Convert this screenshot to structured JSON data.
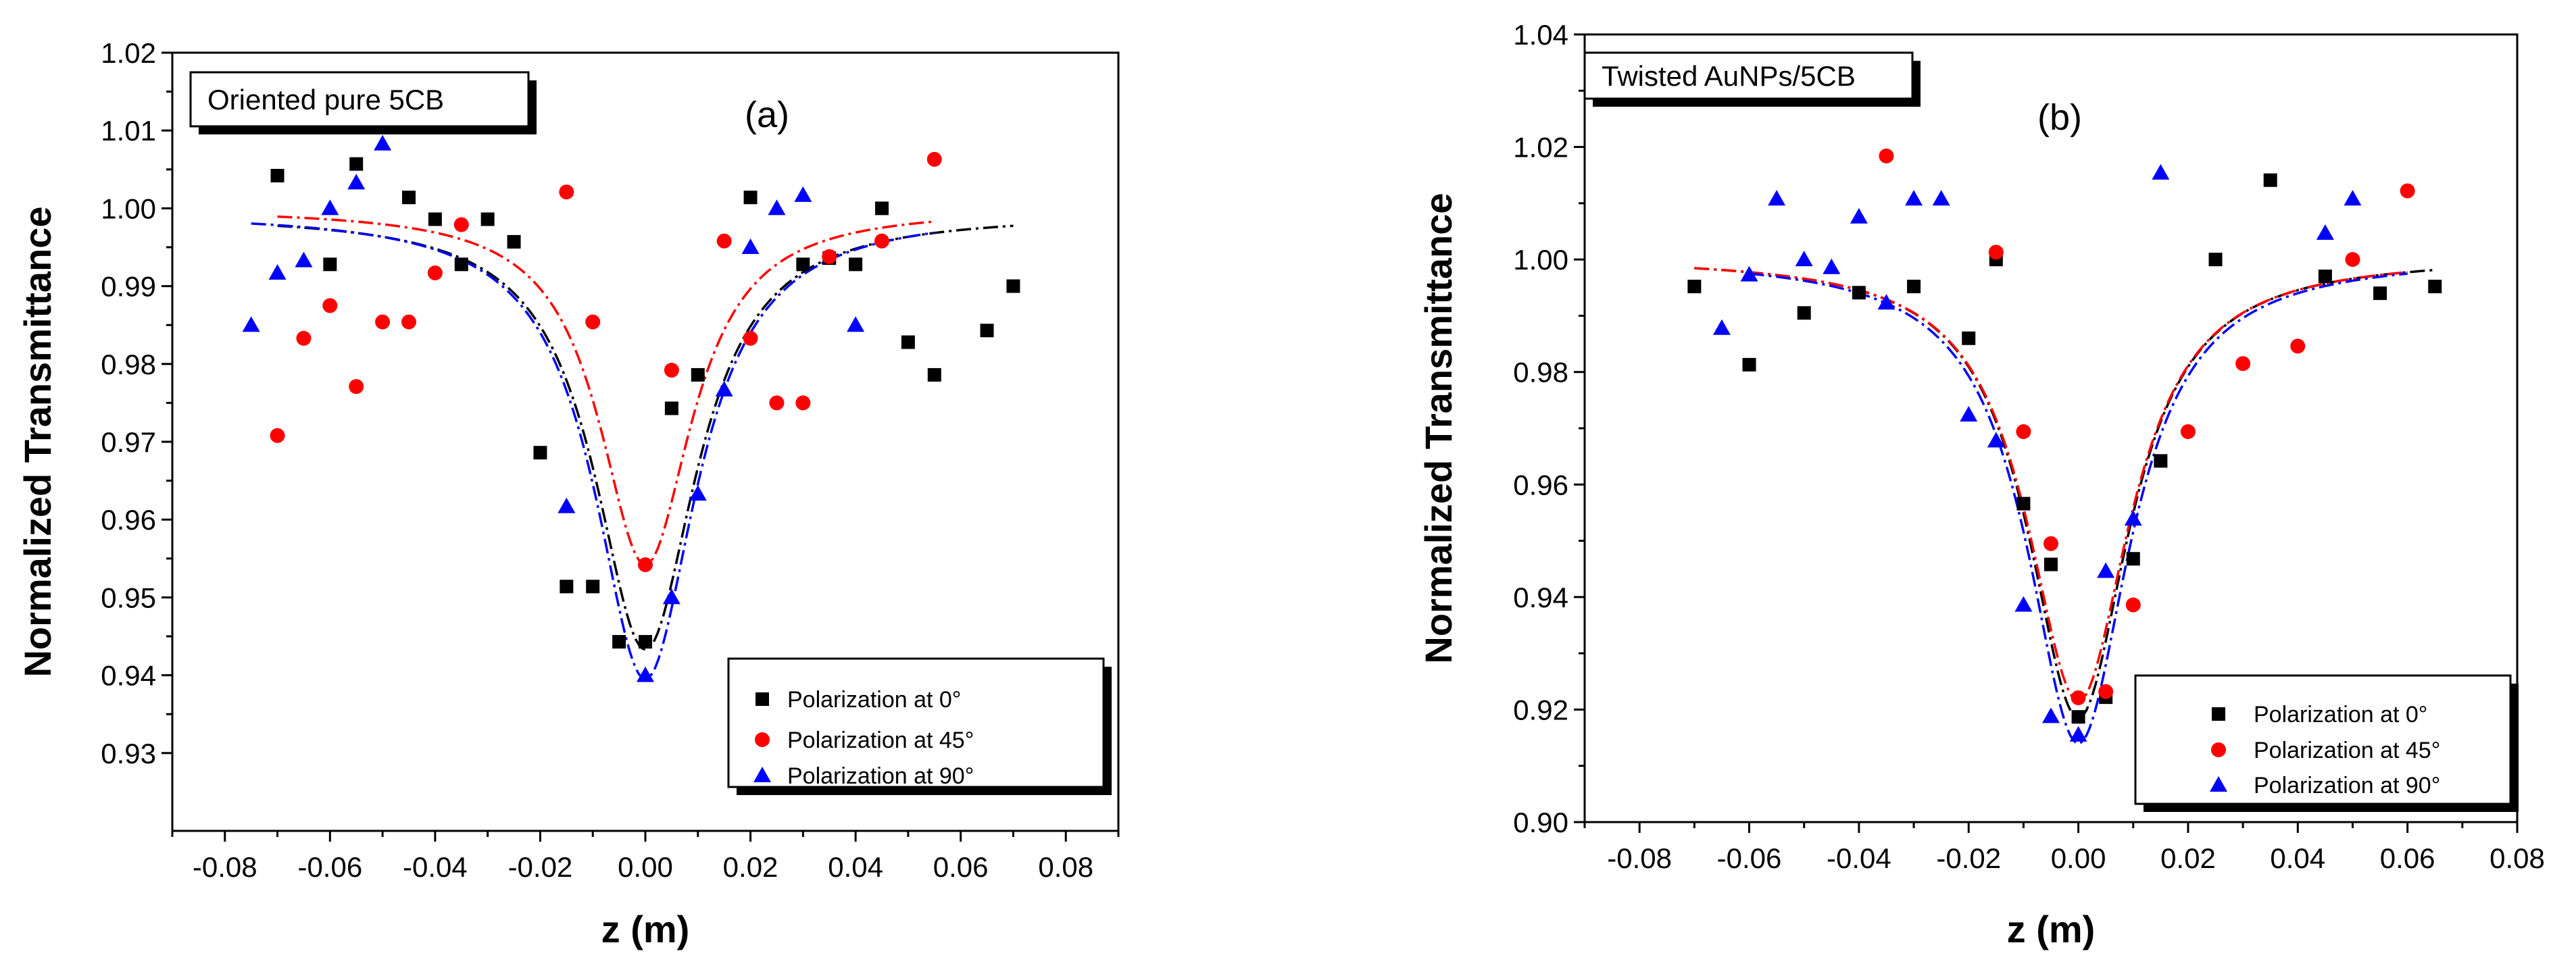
{
  "chart_data": [
    {
      "type": "scatter",
      "panel": "(a)",
      "label_box": "Oriented pure 5CB",
      "xlabel": "z (m)",
      "ylabel": "Normalized Transmittance",
      "xlim": [
        -0.09,
        0.09
      ],
      "ylim": [
        0.92,
        1.02
      ],
      "xticks": [
        -0.08,
        -0.06,
        -0.04,
        -0.02,
        0.0,
        0.02,
        0.04,
        0.06,
        0.08
      ],
      "xtick_labels": [
        "-0.08",
        "-0.06",
        "-0.04",
        "-0.02",
        "0.00",
        "0.02",
        "0.04",
        "0.06",
        "0.08"
      ],
      "yticks": [
        0.93,
        0.94,
        0.95,
        0.96,
        0.97,
        0.98,
        0.99,
        1.0,
        1.01,
        1.02
      ],
      "ytick_labels": [
        "0.93",
        "0.94",
        "0.95",
        "0.96",
        "0.97",
        "0.98",
        "0.99",
        "1.00",
        "1.01",
        "1.02"
      ],
      "legend_position": "bottom-right",
      "series": [
        {
          "name": "Polarization at 0°",
          "marker": "square",
          "color": "#000000",
          "points": [
            [
              -0.07,
              1.0042
            ],
            [
              -0.06,
              0.9928
            ],
            [
              -0.055,
              1.0057
            ],
            [
              -0.045,
              1.0014
            ],
            [
              -0.04,
              0.9986
            ],
            [
              -0.035,
              0.9928
            ],
            [
              -0.03,
              0.9986
            ],
            [
              -0.025,
              0.9957
            ],
            [
              -0.02,
              0.9686
            ],
            [
              -0.015,
              0.9514
            ],
            [
              -0.01,
              0.9514
            ],
            [
              -0.005,
              0.9443
            ],
            [
              0.0,
              0.9443
            ],
            [
              0.005,
              0.9743
            ],
            [
              0.01,
              0.9786
            ],
            [
              0.02,
              1.0014
            ],
            [
              0.03,
              0.9928
            ],
            [
              0.035,
              0.9936
            ],
            [
              0.04,
              0.9928
            ],
            [
              0.045,
              1.0
            ],
            [
              0.05,
              0.9828
            ],
            [
              0.055,
              0.9786
            ],
            [
              0.065,
              0.9843
            ],
            [
              0.07,
              0.99
            ]
          ],
          "fit": {
            "color": "#000000",
            "dash": "dashdot",
            "x_range": [
              -0.07,
              0.07
            ],
            "baseline": 0.9993,
            "depth": 0.056,
            "width": 0.0118
          }
        },
        {
          "name": "Polarization at 45°",
          "marker": "circle",
          "color": "#ff0000",
          "points": [
            [
              -0.07,
              0.9708
            ],
            [
              -0.065,
              0.9833
            ],
            [
              -0.06,
              0.9875
            ],
            [
              -0.055,
              0.9771
            ],
            [
              -0.05,
              0.9854
            ],
            [
              -0.045,
              0.9854
            ],
            [
              -0.04,
              0.9917
            ],
            [
              -0.035,
              0.9979
            ],
            [
              -0.015,
              1.0021
            ],
            [
              -0.01,
              0.9854
            ],
            [
              0.0,
              0.9542
            ],
            [
              0.005,
              0.9792
            ],
            [
              0.015,
              0.9958
            ],
            [
              0.02,
              0.9833
            ],
            [
              0.025,
              0.975
            ],
            [
              0.03,
              0.975
            ],
            [
              0.035,
              0.9938
            ],
            [
              0.045,
              0.9958
            ],
            [
              0.055,
              1.0063
            ]
          ],
          "fit": {
            "color": "#ff0000",
            "dash": "dashdot",
            "x_range": [
              -0.07,
              0.055
            ],
            "baseline": 1.0,
            "depth": 0.0458,
            "width": 0.0108
          }
        },
        {
          "name": "Polarization at 90°",
          "marker": "triangle",
          "color": "#0000ff",
          "points": [
            [
              -0.075,
              0.985
            ],
            [
              -0.07,
              0.9917
            ],
            [
              -0.065,
              0.9933
            ],
            [
              -0.06,
              1.0
            ],
            [
              -0.055,
              1.0033
            ],
            [
              -0.05,
              1.0083
            ],
            [
              -0.015,
              0.9617
            ],
            [
              0.0,
              0.94
            ],
            [
              0.005,
              0.95
            ],
            [
              0.01,
              0.9633
            ],
            [
              0.015,
              0.9767
            ],
            [
              0.02,
              0.995
            ],
            [
              0.025,
              1.0
            ],
            [
              0.03,
              1.0017
            ],
            [
              0.04,
              0.985
            ]
          ],
          "fit": {
            "color": "#0000ff",
            "dash": "dashdot",
            "x_range": [
              -0.075,
              0.055
            ],
            "baseline": 0.9995,
            "depth": 0.06,
            "width": 0.0118
          }
        }
      ]
    },
    {
      "type": "scatter",
      "panel": "(b)",
      "label_box": "Twisted AuNPs/5CB",
      "xlabel": "z (m)",
      "ylabel": "Normalized Transmittance",
      "xlim": [
        -0.09,
        0.08
      ],
      "ylim": [
        0.9,
        1.04
      ],
      "xticks": [
        -0.08,
        -0.06,
        -0.04,
        -0.02,
        0.0,
        0.02,
        0.04,
        0.06,
        0.08
      ],
      "xtick_labels": [
        "-0.08",
        "-0.06",
        "-0.04",
        "-0.02",
        "0.00",
        "0.02",
        "0.04",
        "0.06",
        "0.08"
      ],
      "yticks": [
        0.9,
        0.92,
        0.94,
        0.96,
        0.98,
        1.0,
        1.02,
        1.04
      ],
      "ytick_labels": [
        "0.90",
        "0.92",
        "0.94",
        "0.96",
        "0.98",
        "1.00",
        "1.02",
        "1.04"
      ],
      "legend_position": "bottom-right",
      "series": [
        {
          "name": "Polarization at 0°",
          "marker": "square",
          "color": "#000000",
          "points": [
            [
              -0.07,
              0.9952
            ],
            [
              -0.06,
              0.9813
            ],
            [
              -0.05,
              0.9905
            ],
            [
              -0.04,
              0.9941
            ],
            [
              -0.03,
              0.9952
            ],
            [
              -0.02,
              0.986
            ],
            [
              -0.015,
              1.0
            ],
            [
              -0.01,
              0.9566
            ],
            [
              -0.005,
              0.9458
            ],
            [
              0.0,
              0.9187
            ],
            [
              0.005,
              0.9222
            ],
            [
              0.01,
              0.9468
            ],
            [
              0.015,
              0.9642
            ],
            [
              0.025,
              1.0
            ],
            [
              0.035,
              1.0141
            ],
            [
              0.045,
              0.997
            ],
            [
              0.055,
              0.994
            ],
            [
              0.065,
              0.9952
            ]
          ],
          "fit": {
            "color": "#000000",
            "dash": "dashdot",
            "x_range": [
              -0.07,
              0.065
            ],
            "baseline": 1.0005,
            "depth": 0.082,
            "width": 0.0112
          }
        },
        {
          "name": "Polarization at 45°",
          "marker": "circle",
          "color": "#ff0000",
          "points": [
            [
              -0.035,
              1.0184
            ],
            [
              -0.015,
              1.0013
            ],
            [
              -0.01,
              0.9694
            ],
            [
              -0.005,
              0.9495
            ],
            [
              0.0,
              0.9221
            ],
            [
              0.005,
              0.9232
            ],
            [
              0.01,
              0.9386
            ],
            [
              0.02,
              0.9694
            ],
            [
              0.03,
              0.9815
            ],
            [
              0.04,
              0.9846
            ],
            [
              0.05,
              1.0
            ],
            [
              0.06,
              1.0122
            ]
          ],
          "fit": {
            "color": "#ff0000",
            "dash": "dashdot",
            "x_range": [
              -0.07,
              0.06
            ],
            "baseline": 1.0005,
            "depth": 0.079,
            "width": 0.0114
          }
        },
        {
          "name": "Polarization at 90°",
          "marker": "triangle",
          "color": "#0000ff",
          "points": [
            [
              -0.065,
              0.9878
            ],
            [
              -0.06,
              0.9973
            ],
            [
              -0.055,
              1.0108
            ],
            [
              -0.05,
              1.0
            ],
            [
              -0.045,
              0.9986
            ],
            [
              -0.04,
              1.0076
            ],
            [
              -0.035,
              0.9923
            ],
            [
              -0.03,
              1.0108
            ],
            [
              -0.025,
              1.0108
            ],
            [
              -0.02,
              0.9724
            ],
            [
              -0.015,
              0.9678
            ],
            [
              -0.01,
              0.9386
            ],
            [
              -0.005,
              0.9188
            ],
            [
              0.0,
              0.9155
            ],
            [
              0.005,
              0.9446
            ],
            [
              0.01,
              0.9539
            ],
            [
              0.015,
              1.0154
            ],
            [
              0.045,
              1.0047
            ],
            [
              0.05,
              1.0108
            ]
          ],
          "fit": {
            "color": "#0000ff",
            "dash": "dashdot",
            "x_range": [
              -0.06,
              0.06
            ],
            "baseline": 1.0005,
            "depth": 0.0865,
            "width": 0.0114
          }
        }
      ]
    }
  ]
}
